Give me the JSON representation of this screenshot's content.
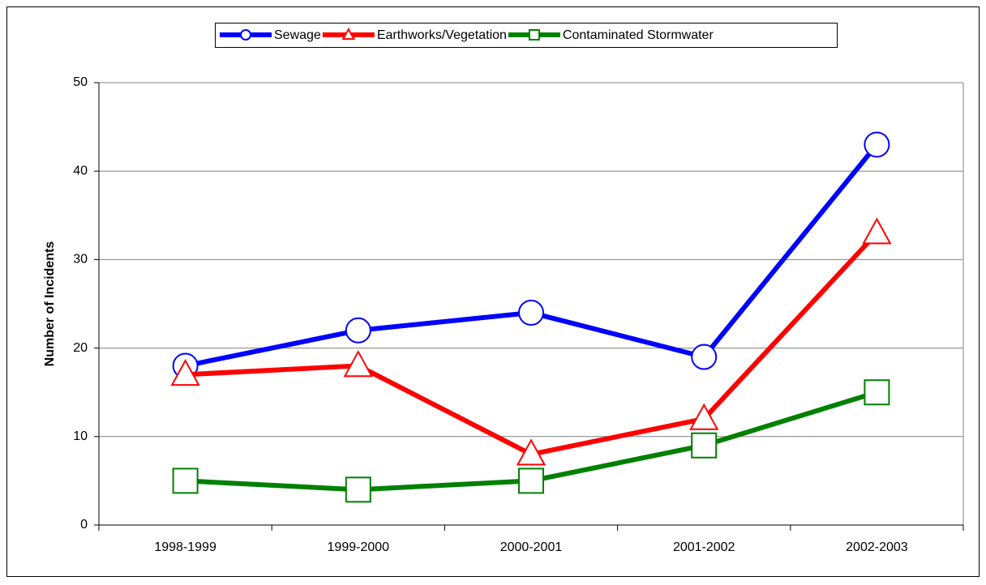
{
  "chart_data": {
    "type": "line",
    "y_label": "Number of Incidents",
    "categories": [
      "1998-1999",
      "1999-2000",
      "2000-2001",
      "2001-2002",
      "2002-2003"
    ],
    "series": [
      {
        "name": "Sewage",
        "color": "#0000ff",
        "marker": "circle",
        "values": [
          18,
          22,
          24,
          19,
          43
        ]
      },
      {
        "name": "Earthworks/Vegetation",
        "color": "#ff0000",
        "marker": "triangle",
        "values": [
          17,
          18,
          8,
          12,
          33
        ]
      },
      {
        "name": "Contaminated Stormwater",
        "color": "#008000",
        "marker": "square",
        "values": [
          5,
          4,
          5,
          9,
          15
        ]
      }
    ],
    "ylim": [
      0,
      50
    ],
    "yticks": [
      0,
      10,
      20,
      30,
      40,
      50
    ],
    "grid": true,
    "legend": "top"
  }
}
